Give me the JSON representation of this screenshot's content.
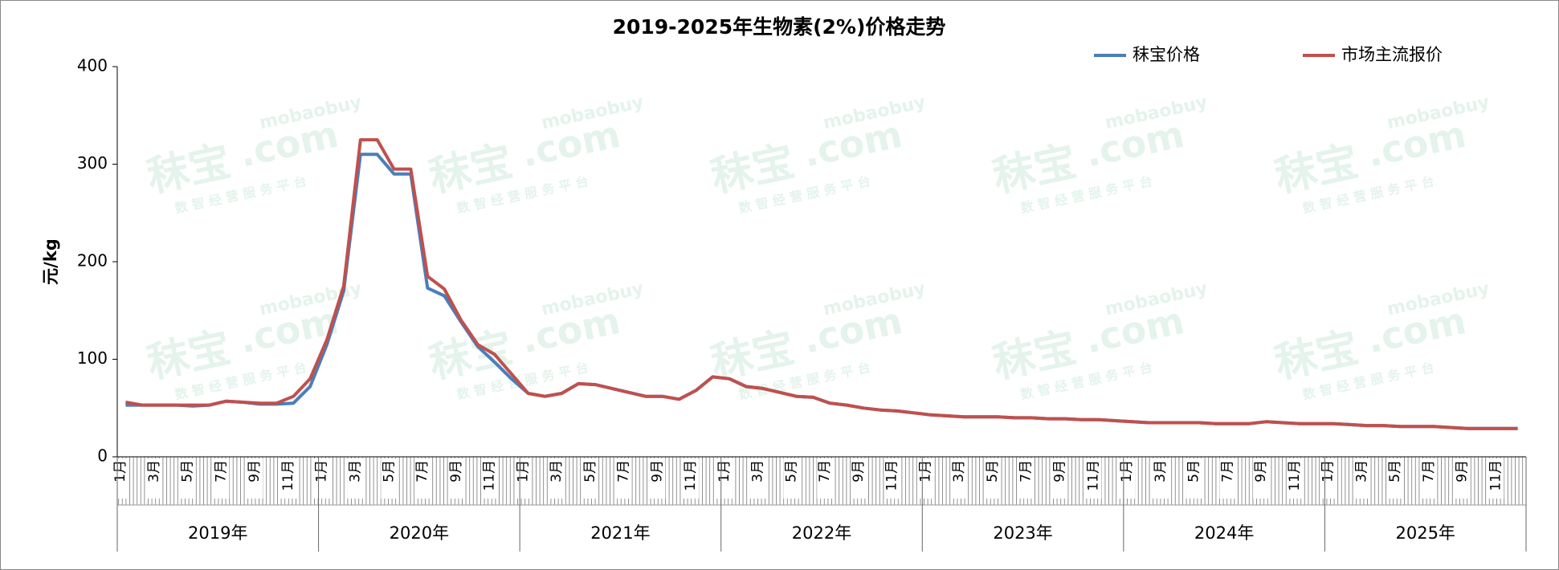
{
  "chart_data": {
    "type": "line",
    "title": "2019-2025年生物素(2%)价格走势",
    "y_label": "元/kg",
    "categories": [
      "1月",
      null,
      "3月",
      null,
      "5月",
      null,
      "7月",
      null,
      "9月",
      null,
      "11月",
      null,
      "1月",
      null,
      "3月",
      null,
      "5月",
      null,
      "7月",
      null,
      "9月",
      null,
      "11月",
      null,
      "1月",
      null,
      "3月",
      null,
      "5月",
      null,
      "7月",
      null,
      "9月",
      null,
      "11月",
      null,
      "1月",
      null,
      "3月",
      null,
      "5月",
      null,
      "7月",
      null,
      "9月",
      null,
      "11月",
      null,
      "1月",
      null,
      "3月",
      null,
      "5月",
      null,
      "7月",
      null,
      "9月",
      null,
      "11月",
      null,
      "1月",
      null,
      "3月",
      null,
      "5月",
      null,
      "7月",
      null,
      "9月",
      null,
      "11月",
      null,
      "1月",
      null,
      "3月",
      null,
      "5月",
      null,
      "7月",
      null,
      "9月",
      null,
      "11月",
      null
    ],
    "years": [
      "2019年",
      "2020年",
      "2021年",
      "2022年",
      "2023年",
      "2024年",
      "2025年"
    ],
    "series": [
      {
        "name": "秣宝价格",
        "color": "#4a7ebb",
        "values": [
          53,
          53,
          53,
          53,
          52,
          53,
          57,
          56,
          54,
          54,
          55,
          72,
          115,
          170,
          310,
          310,
          290,
          290,
          173,
          165,
          138,
          113,
          97,
          80,
          65,
          62,
          65,
          75,
          74,
          70,
          66,
          62,
          62,
          59,
          68,
          82,
          80,
          72,
          70,
          66,
          62,
          61,
          55,
          53,
          50,
          48,
          47,
          45,
          43,
          42,
          41,
          41,
          41,
          40,
          40,
          39,
          39,
          38,
          38,
          37,
          36,
          35,
          35,
          35,
          35,
          34,
          34,
          34,
          36,
          35,
          34,
          34,
          34,
          33,
          32,
          32,
          31,
          31,
          31,
          30,
          29,
          29,
          29,
          29
        ]
      },
      {
        "name": "市场主流报价",
        "color": "#c0504d",
        "values": [
          56,
          53,
          53,
          53,
          53,
          53,
          57,
          56,
          55,
          55,
          62,
          80,
          120,
          175,
          325,
          325,
          295,
          295,
          185,
          172,
          140,
          115,
          105,
          85,
          65,
          62,
          65,
          75,
          74,
          70,
          66,
          62,
          62,
          59,
          68,
          82,
          80,
          72,
          70,
          66,
          62,
          61,
          55,
          53,
          50,
          48,
          47,
          45,
          43,
          42,
          41,
          41,
          41,
          40,
          40,
          39,
          39,
          38,
          38,
          37,
          36,
          35,
          35,
          35,
          35,
          34,
          34,
          34,
          36,
          35,
          34,
          34,
          34,
          33,
          32,
          32,
          31,
          31,
          31,
          30,
          29,
          29,
          29,
          29
        ]
      }
    ],
    "ylim": [
      0,
      400
    ],
    "yticks": [
      0,
      100,
      200,
      300,
      400
    ],
    "grid": false,
    "legend": "top-right",
    "watermark": {
      "brand": "秣宝",
      "domain": ".com",
      "en": "mobaobuy",
      "slogan": "数 智 经 营 服 务 平 台"
    }
  }
}
